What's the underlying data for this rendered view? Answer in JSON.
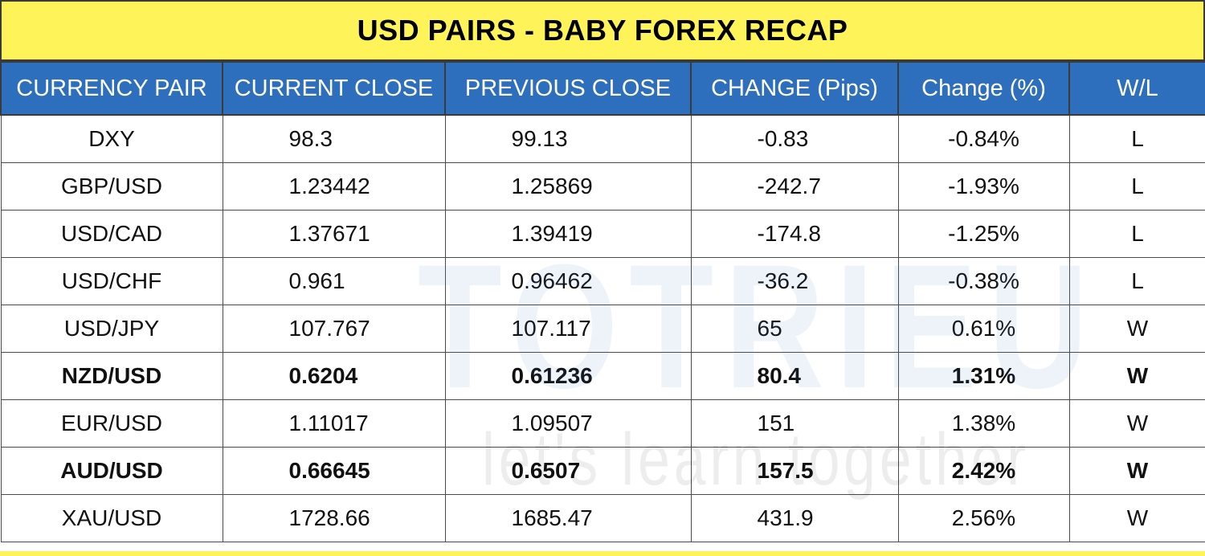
{
  "title": "USD PAIRS - BABY FOREX RECAP",
  "columns": [
    "CURRENCY PAIR",
    "CURRENT CLOSE",
    "PREVIOUS CLOSE",
    "CHANGE (Pips)",
    "Change (%)",
    "W/L"
  ],
  "rows": [
    {
      "pair": "DXY",
      "current": "98.3",
      "previous": "99.13",
      "pips": "-0.83",
      "pct": "-0.84%",
      "wl": "L",
      "bold": false
    },
    {
      "pair": "GBP/USD",
      "current": "1.23442",
      "previous": "1.25869",
      "pips": "-242.7",
      "pct": "-1.93%",
      "wl": "L",
      "bold": false
    },
    {
      "pair": "USD/CAD",
      "current": "1.37671",
      "previous": "1.39419",
      "pips": "-174.8",
      "pct": "-1.25%",
      "wl": "L",
      "bold": false
    },
    {
      "pair": "USD/CHF",
      "current": "0.961",
      "previous": "0.96462",
      "pips": "-36.2",
      "pct": "-0.38%",
      "wl": "L",
      "bold": false
    },
    {
      "pair": "USD/JPY",
      "current": "107.767",
      "previous": "107.117",
      "pips": "65",
      "pct": "0.61%",
      "wl": "W",
      "bold": false
    },
    {
      "pair": "NZD/USD",
      "current": "0.6204",
      "previous": "0.61236",
      "pips": "80.4",
      "pct": "1.31%",
      "wl": "W",
      "bold": true
    },
    {
      "pair": "EUR/USD",
      "current": "1.11017",
      "previous": "1.09507",
      "pips": "151",
      "pct": "1.38%",
      "wl": "W",
      "bold": false
    },
    {
      "pair": "AUD/USD",
      "current": "0.66645",
      "previous": "0.6507",
      "pips": "157.5",
      "pct": "2.42%",
      "wl": "W",
      "bold": true
    },
    {
      "pair": "XAU/USD",
      "current": "1728.66",
      "previous": "1685.47",
      "pips": "431.9",
      "pct": "2.56%",
      "wl": "W",
      "bold": false
    }
  ],
  "watermark": {
    "brand": "TOTRIEU",
    "tagline": "let's learn together"
  },
  "colors": {
    "title_bg": "#fff35a",
    "header_bg": "#2e6fbd",
    "header_text": "#ffffff",
    "border": "#3a3a3a"
  }
}
